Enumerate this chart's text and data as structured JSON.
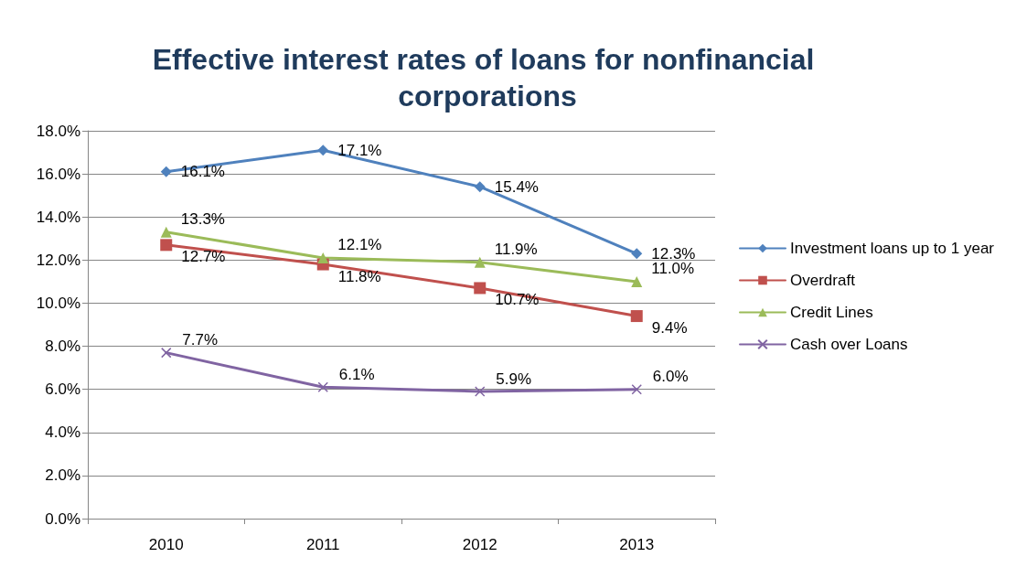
{
  "chart_data": {
    "type": "line",
    "title": "Effective interest rates of loans for nonfinancial corporations",
    "categories": [
      "2010",
      "2011",
      "2012",
      "2013"
    ],
    "series": [
      {
        "name": "Investment loans up to 1 year",
        "color": "#4f81bd",
        "marker": "diamond",
        "values": [
          16.1,
          17.1,
          15.4,
          12.3
        ],
        "value_labels": [
          "16.1%",
          "17.1%",
          "15.4%",
          "12.3%"
        ]
      },
      {
        "name": "Overdraft",
        "color": "#c0504d",
        "marker": "square",
        "values": [
          12.7,
          11.8,
          10.7,
          9.4
        ],
        "value_labels": [
          "12.7%",
          "11.8%",
          "10.7%",
          "9.4%"
        ]
      },
      {
        "name": "Credit Lines",
        "color": "#9bbb59",
        "marker": "triangle",
        "values": [
          13.3,
          12.1,
          11.9,
          11.0
        ],
        "value_labels": [
          "13.3%",
          "12.1%",
          "11.9%",
          "11.0%"
        ]
      },
      {
        "name": "Cash over Loans",
        "color": "#8064a2",
        "marker": "cross",
        "values": [
          7.7,
          6.1,
          5.9,
          6.0
        ],
        "value_labels": [
          "7.7%",
          "6.1%",
          "5.9%",
          "6.0%"
        ]
      }
    ],
    "ylim": [
      0,
      18
    ],
    "yticks": [
      {
        "value": 0,
        "label": "0.0%"
      },
      {
        "value": 2,
        "label": "2.0%"
      },
      {
        "value": 4,
        "label": "4.0%"
      },
      {
        "value": 6,
        "label": "6.0%"
      },
      {
        "value": 8,
        "label": "8.0%"
      },
      {
        "value": 10,
        "label": "10.0%"
      },
      {
        "value": 12,
        "label": "12.0%"
      },
      {
        "value": 14,
        "label": "14.0%"
      },
      {
        "value": 16,
        "label": "16.0%"
      },
      {
        "value": 18,
        "label": "18.0%"
      }
    ],
    "grid": "y",
    "legend": "right",
    "line_style": "solid"
  }
}
